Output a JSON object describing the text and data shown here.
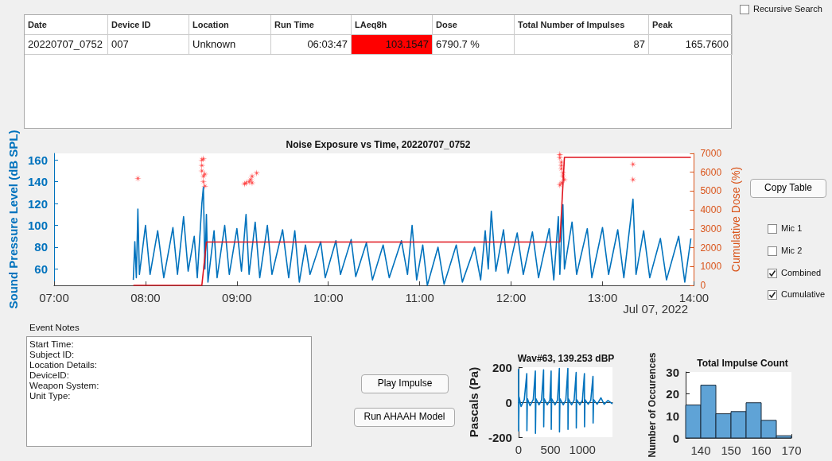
{
  "chart_data": [
    {
      "type": "other",
      "annotations": [
        "Date",
        "Device ID",
        "Location",
        "Run Time",
        "LAeq8h",
        "Dose",
        "Total Number of Impulses",
        "Peak",
        "20220707_0752",
        "007",
        "Unknown",
        "06:03:47",
        "103.1547",
        "6790.7 %",
        "87",
        "165.7600"
      ]
    },
    {
      "type": "line",
      "title": "Noise Exposure vs Time, 20220707_0752",
      "ylabel": "Sound Pressure Level (dB SPL)",
      "y2label": "Cumulative Dose (%)",
      "annotations": [
        "Jul 07, 2022"
      ],
      "xlim": [
        "2022-07-07T07:00",
        "2022-07-07T14:00"
      ],
      "xticks": [
        {
          "value": "2022-07-07T07:00",
          "label": "07:00"
        },
        {
          "value": "2022-07-07T08:00",
          "label": "08:00"
        },
        {
          "value": "2022-07-07T09:00",
          "label": "09:00"
        },
        {
          "value": "2022-07-07T10:00",
          "label": "10:00"
        },
        {
          "value": "2022-07-07T11:00",
          "label": "11:00"
        },
        {
          "value": "2022-07-07T12:00",
          "label": "12:00"
        },
        {
          "value": "2022-07-07T13:00",
          "label": "13:00"
        },
        {
          "value": "2022-07-07T14:00",
          "label": "14:00"
        }
      ],
      "ylim": [
        45,
        166
      ],
      "yticks": [
        60,
        80,
        100,
        120,
        140,
        160
      ],
      "y2lim": [
        0,
        7000
      ],
      "y2ticks": [
        0,
        1000,
        2000,
        3000,
        4000,
        5000,
        6000,
        7000
      ],
      "series": [
        {
          "type": "line",
          "marker": "none",
          "color": "#0072bd",
          "x": [
            "2022-07-07T07:52",
            "2022-07-07T07:53",
            "2022-07-07T07:54",
            "2022-07-07T07:55",
            "2022-07-07T07:56",
            "2022-07-07T08:00",
            "2022-07-07T08:03",
            "2022-07-07T08:08",
            "2022-07-07T08:12",
            "2022-07-07T08:18",
            "2022-07-07T08:21",
            "2022-07-07T08:25",
            "2022-07-07T08:28",
            "2022-07-07T08:32",
            "2022-07-07T08:34",
            "2022-07-07T08:37",
            "2022-07-07T08:38",
            "2022-07-07T08:39",
            "2022-07-07T08:40",
            "2022-07-07T08:41",
            "2022-07-07T08:45",
            "2022-07-07T08:47",
            "2022-07-07T08:52",
            "2022-07-07T08:55",
            "2022-07-07T09:00",
            "2022-07-07T09:03",
            "2022-07-07T09:06",
            "2022-07-07T09:08",
            "2022-07-07T09:12",
            "2022-07-07T09:15",
            "2022-07-07T09:20",
            "2022-07-07T09:23",
            "2022-07-07T09:30",
            "2022-07-07T09:34",
            "2022-07-07T09:38",
            "2022-07-07T09:41",
            "2022-07-07T09:45",
            "2022-07-07T09:48",
            "2022-07-07T09:55",
            "2022-07-07T09:58",
            "2022-07-07T10:05",
            "2022-07-07T10:08",
            "2022-07-07T10:15",
            "2022-07-07T10:18",
            "2022-07-07T10:25",
            "2022-07-07T10:29",
            "2022-07-07T10:36",
            "2022-07-07T10:40",
            "2022-07-07T10:48",
            "2022-07-07T10:52",
            "2022-07-07T10:55",
            "2022-07-07T10:58",
            "2022-07-07T11:02",
            "2022-07-07T11:05",
            "2022-07-07T11:12",
            "2022-07-07T11:16",
            "2022-07-07T11:24",
            "2022-07-07T11:28",
            "2022-07-07T11:36",
            "2022-07-07T11:40",
            "2022-07-07T11:43",
            "2022-07-07T11:45",
            "2022-07-07T11:47",
            "2022-07-07T11:50",
            "2022-07-07T11:55",
            "2022-07-07T11:58",
            "2022-07-07T12:04",
            "2022-07-07T12:08",
            "2022-07-07T12:14",
            "2022-07-07T12:18",
            "2022-07-07T12:25",
            "2022-07-07T12:28",
            "2022-07-07T12:31",
            "2022-07-07T12:32",
            "2022-07-07T12:34",
            "2022-07-07T12:35",
            "2022-07-07T12:40",
            "2022-07-07T12:43",
            "2022-07-07T12:50",
            "2022-07-07T12:53",
            "2022-07-07T13:00",
            "2022-07-07T13:04",
            "2022-07-07T13:10",
            "2022-07-07T13:14",
            "2022-07-07T13:20",
            "2022-07-07T13:22",
            "2022-07-07T13:27",
            "2022-07-07T13:31",
            "2022-07-07T13:38",
            "2022-07-07T13:42",
            "2022-07-07T13:50",
            "2022-07-07T13:54",
            "2022-07-07T13:58"
          ],
          "values": [
            50,
            85,
            52,
            115,
            55,
            100,
            55,
            95,
            52,
            98,
            55,
            108,
            58,
            90,
            52,
            120,
            135,
            60,
            110,
            48,
            95,
            52,
            100,
            55,
            97,
            58,
            110,
            55,
            103,
            52,
            100,
            55,
            96,
            52,
            95,
            48,
            82,
            55,
            85,
            52,
            86,
            55,
            87,
            53,
            84,
            50,
            82,
            52,
            86,
            55,
            100,
            50,
            82,
            45,
            80,
            46,
            82,
            48,
            80,
            50,
            95,
            60,
            113,
            58,
            96,
            56,
            93,
            55,
            94,
            52,
            97,
            50,
            108,
            55,
            119,
            60,
            103,
            55,
            97,
            52,
            98,
            55,
            96,
            52,
            124,
            55,
            95,
            52,
            88,
            50,
            90,
            48,
            88
          ]
        },
        {
          "type": "line",
          "marker": "none",
          "axis": "y2",
          "color": "#e0141e",
          "x": [
            "2022-07-07T07:52",
            "2022-07-07T08:37",
            "2022-07-07T08:40",
            "2022-07-07T12:32",
            "2022-07-07T12:35",
            "2022-07-07T13:58"
          ],
          "values": [
            0,
            0,
            2300,
            2300,
            6790,
            6790
          ]
        },
        {
          "type": "scatter",
          "marker": "star",
          "color": "#ff2020",
          "x": [
            "2022-07-07T07:55",
            "2022-07-07T08:37",
            "2022-07-07T08:37",
            "2022-07-07T08:37",
            "2022-07-07T08:38",
            "2022-07-07T08:38",
            "2022-07-07T08:38",
            "2022-07-07T08:39",
            "2022-07-07T08:39",
            "2022-07-07T09:05",
            "2022-07-07T09:06",
            "2022-07-07T09:08",
            "2022-07-07T09:09",
            "2022-07-07T09:10",
            "2022-07-07T09:10",
            "2022-07-07T09:13",
            "2022-07-07T12:32",
            "2022-07-07T12:32",
            "2022-07-07T12:33",
            "2022-07-07T12:33",
            "2022-07-07T12:33",
            "2022-07-07T12:34",
            "2022-07-07T12:34",
            "2022-07-07T12:35",
            "2022-07-07T12:33",
            "2022-07-07T12:32",
            "2022-07-07T13:20",
            "2022-07-07T13:20"
          ],
          "values": [
            143,
            160,
            155,
            150,
            161,
            145,
            140,
            136,
            147,
            138,
            139,
            140,
            142,
            145,
            139,
            148,
            165,
            162,
            158,
            155,
            152,
            148,
            145,
            142,
            139,
            137,
            156,
            142
          ]
        }
      ]
    },
    {
      "type": "line",
      "title": "Wav#63, 139.253 dBP",
      "ylabel": "Pascals (Pa)",
      "xlim": [
        0,
        1470
      ],
      "xticks": [
        0,
        500,
        1000
      ],
      "ylim": [
        -200,
        200
      ],
      "yticks": [
        -200,
        0,
        200
      ],
      "series": [
        {
          "type": "line",
          "marker": "none",
          "color": "#0072bd",
          "x": [
            0,
            2,
            8,
            40,
            90,
            129,
            131,
            138,
            180,
            230,
            263,
            265,
            272,
            320,
            360,
            392,
            394,
            400,
            450,
            490,
            510,
            512,
            518,
            570,
            610,
            639,
            641,
            648,
            700,
            740,
            772,
            774,
            780,
            830,
            870,
            902,
            904,
            910,
            960,
            1000,
            1031,
            1033,
            1040,
            1090,
            1130,
            1165,
            1167,
            1175,
            1230,
            1290,
            1340,
            1400,
            1470
          ],
          "values": [
            190,
            -165,
            30,
            -25,
            15,
            163,
            -163,
            20,
            -20,
            15,
            178,
            -178,
            20,
            -15,
            12,
            185,
            -141,
            20,
            -15,
            12,
            178,
            -156,
            20,
            -15,
            12,
            193,
            -170,
            20,
            -15,
            12,
            193,
            -156,
            20,
            -15,
            12,
            170,
            -148,
            15,
            -15,
            12,
            163,
            -141,
            15,
            -12,
            10,
            148,
            -119,
            15,
            -12,
            25,
            -12,
            10,
            -10
          ]
        }
      ]
    },
    {
      "type": "histogram",
      "title": "Total Impulse Count",
      "ylabel": "Number of Occurences",
      "color": "#5fa3d6",
      "bins": [
        135,
        140,
        145,
        150,
        155,
        160,
        165,
        170
      ],
      "values": [
        15,
        24,
        11,
        12,
        16,
        8,
        1
      ],
      "xlim": [
        135,
        170
      ],
      "xticks": [
        140,
        150,
        160,
        170
      ],
      "ylim": [
        0,
        30
      ],
      "yticks": [
        0,
        10,
        20,
        30
      ]
    },
    {
      "type": "other",
      "annotations": [
        "Recursive Search",
        "Copy Table",
        "Mic 1",
        "Mic 2",
        "Combined",
        "Cumulative",
        "Event Notes",
        "Start Time:",
        "Subject ID:",
        "Location Details:",
        "DeviceID:",
        "Weapon System:",
        "Unit Type:",
        "Play Impulse",
        "Run AHAAH Model"
      ]
    }
  ]
}
